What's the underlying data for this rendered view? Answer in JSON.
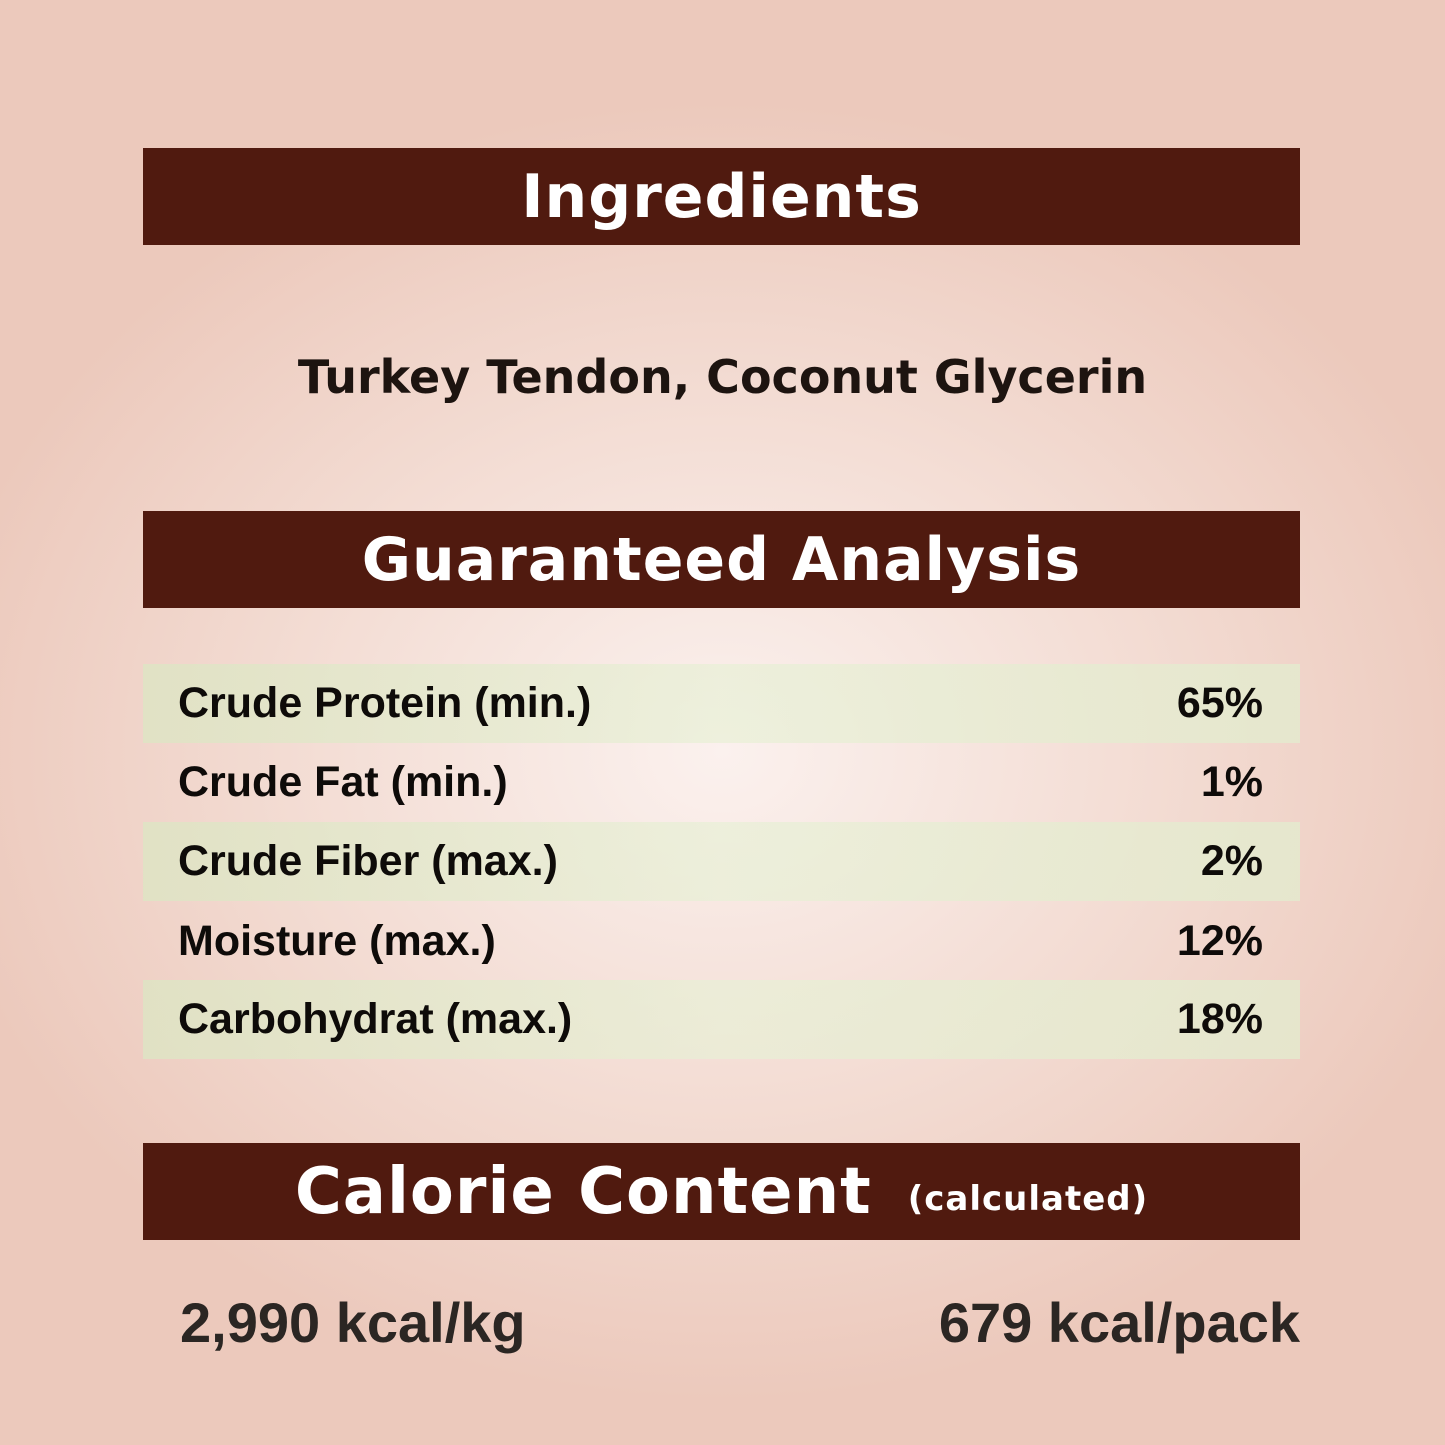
{
  "ingredients": {
    "title": "Ingredients",
    "text": "Turkey Tendon, Coconut Glycerin"
  },
  "analysis": {
    "title": "Guaranteed Analysis",
    "rows": [
      {
        "label": "Crude Protein (min.)",
        "value": "65%"
      },
      {
        "label": "Crude Fat (min.)",
        "value": "1%"
      },
      {
        "label": "Crude Fiber (max.)",
        "value": "2%"
      },
      {
        "label": "Moisture (max.)",
        "value": "12%"
      },
      {
        "label": "Carbohydrat (max.)",
        "value": "18%"
      }
    ]
  },
  "calorie": {
    "title": "Calorie Content",
    "subtitle": "(calculated)",
    "per_kg": "2,990 kcal/kg",
    "per_pack": "679 kcal/pack"
  },
  "colors": {
    "banner": "#501a0f",
    "row_shade": "#e2e8cc"
  }
}
